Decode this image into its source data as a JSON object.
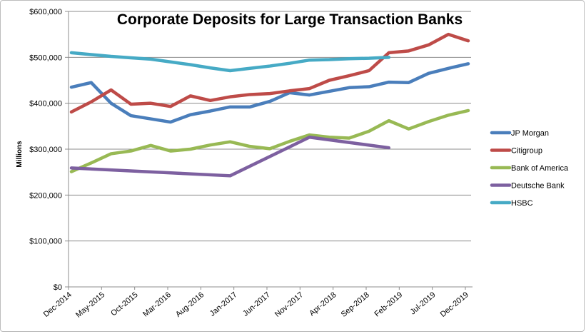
{
  "chart_data": {
    "type": "line",
    "title": "Corporate Deposits for Large Transaction Banks",
    "xlabel": "",
    "ylabel": "Millions",
    "ylim": [
      0,
      600000
    ],
    "y_ticks": [
      "$0",
      "$100,000",
      "$200,000",
      "$300,000",
      "$400,000",
      "$500,000",
      "$600,000"
    ],
    "x_tick_labels": [
      "Dec-2014",
      "May-2015",
      "Oct-2015",
      "Mar-2016",
      "Aug-2016",
      "Jan-2017",
      "Jun-2017",
      "Nov-2017",
      "Apr-2018",
      "Sep-2018",
      "Feb-2019",
      "Jul-2019",
      "Dec-2019"
    ],
    "x": [
      "Dec-2014",
      "Mar-2015",
      "Jun-2015",
      "Sep-2015",
      "Dec-2015",
      "Mar-2016",
      "Jun-2016",
      "Sep-2016",
      "Dec-2016",
      "Mar-2017",
      "Jun-2017",
      "Sep-2017",
      "Dec-2017",
      "Mar-2018",
      "Jun-2018",
      "Sep-2018",
      "Dec-2018",
      "Mar-2019",
      "Jun-2019",
      "Sep-2019",
      "Dec-2019"
    ],
    "grid": true,
    "legend": "right",
    "series": [
      {
        "name": "JP Morgan",
        "color": "#4a7ebb",
        "values": [
          435000,
          445000,
          400000,
          373000,
          366000,
          359000,
          375000,
          383000,
          392000,
          392000,
          404000,
          423000,
          418000,
          426000,
          434000,
          436000,
          446000,
          445000,
          465000,
          476000,
          486000
        ]
      },
      {
        "name": "Citigroup",
        "color": "#be4b48",
        "values": [
          381000,
          403000,
          429000,
          398000,
          400000,
          393000,
          416000,
          406000,
          414000,
          419000,
          421000,
          427000,
          432000,
          450000,
          460000,
          471000,
          510000,
          514000,
          527000,
          550000,
          536000
        ]
      },
      {
        "name": "Bank of America",
        "color": "#98b954",
        "values": [
          251000,
          270000,
          290000,
          296000,
          308000,
          296000,
          300000,
          309000,
          316000,
          306000,
          301000,
          317000,
          331000,
          326000,
          324000,
          339000,
          362000,
          344000,
          360000,
          374000,
          384000
        ]
      },
      {
        "name": "Deutsche Bank",
        "color": "#7d60a0",
        "values": [
          259000,
          null,
          null,
          null,
          null,
          null,
          null,
          null,
          242000,
          null,
          null,
          null,
          326000,
          null,
          null,
          null,
          303000,
          null,
          null,
          null,
          null
        ]
      },
      {
        "name": "HSBC",
        "color": "#46aac5",
        "values": [
          510000,
          506000,
          502000,
          499000,
          496000,
          490000,
          484000,
          477000,
          471000,
          476000,
          481000,
          487000,
          494000,
          495000,
          497000,
          498000,
          500000,
          null,
          null,
          null,
          null
        ]
      }
    ]
  }
}
